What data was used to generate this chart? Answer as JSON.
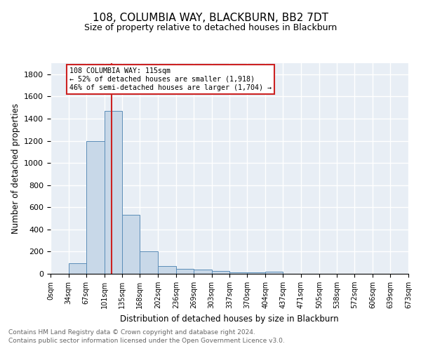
{
  "title": "108, COLUMBIA WAY, BLACKBURN, BB2 7DT",
  "subtitle": "Size of property relative to detached houses in Blackburn",
  "xlabel": "Distribution of detached houses by size in Blackburn",
  "ylabel": "Number of detached properties",
  "footnote1": "Contains HM Land Registry data © Crown copyright and database right 2024.",
  "footnote2": "Contains public sector information licensed under the Open Government Licence v3.0.",
  "bar_color": "#c8d8e8",
  "bar_edge_color": "#5b8db8",
  "background_color": "#e8eef5",
  "grid_color": "white",
  "bins": [
    0,
    34,
    67,
    101,
    135,
    168,
    202,
    236,
    269,
    303,
    337,
    370,
    404,
    437,
    471,
    505,
    538,
    572,
    606,
    639,
    673
  ],
  "counts": [
    0,
    93,
    1200,
    1470,
    535,
    205,
    68,
    47,
    40,
    27,
    12,
    10,
    17,
    0,
    0,
    0,
    0,
    0,
    0,
    0
  ],
  "tick_labels": [
    "0sqm",
    "34sqm",
    "67sqm",
    "101sqm",
    "135sqm",
    "168sqm",
    "202sqm",
    "236sqm",
    "269sqm",
    "303sqm",
    "337sqm",
    "370sqm",
    "404sqm",
    "437sqm",
    "471sqm",
    "505sqm",
    "538sqm",
    "572sqm",
    "606sqm",
    "639sqm",
    "673sqm"
  ],
  "vline_x": 115,
  "vline_color": "#cc2222",
  "annotation_text": "108 COLUMBIA WAY: 115sqm\n← 52% of detached houses are smaller (1,918)\n46% of semi-detached houses are larger (1,704) →",
  "annotation_box_color": "white",
  "annotation_box_edge": "#cc2222",
  "ylim": [
    0,
    1900
  ],
  "yticks": [
    0,
    200,
    400,
    600,
    800,
    1000,
    1200,
    1400,
    1600,
    1800
  ],
  "title_fontsize": 11,
  "subtitle_fontsize": 9,
  "footnote_color": "#666666",
  "footnote_fontsize": 6.5
}
